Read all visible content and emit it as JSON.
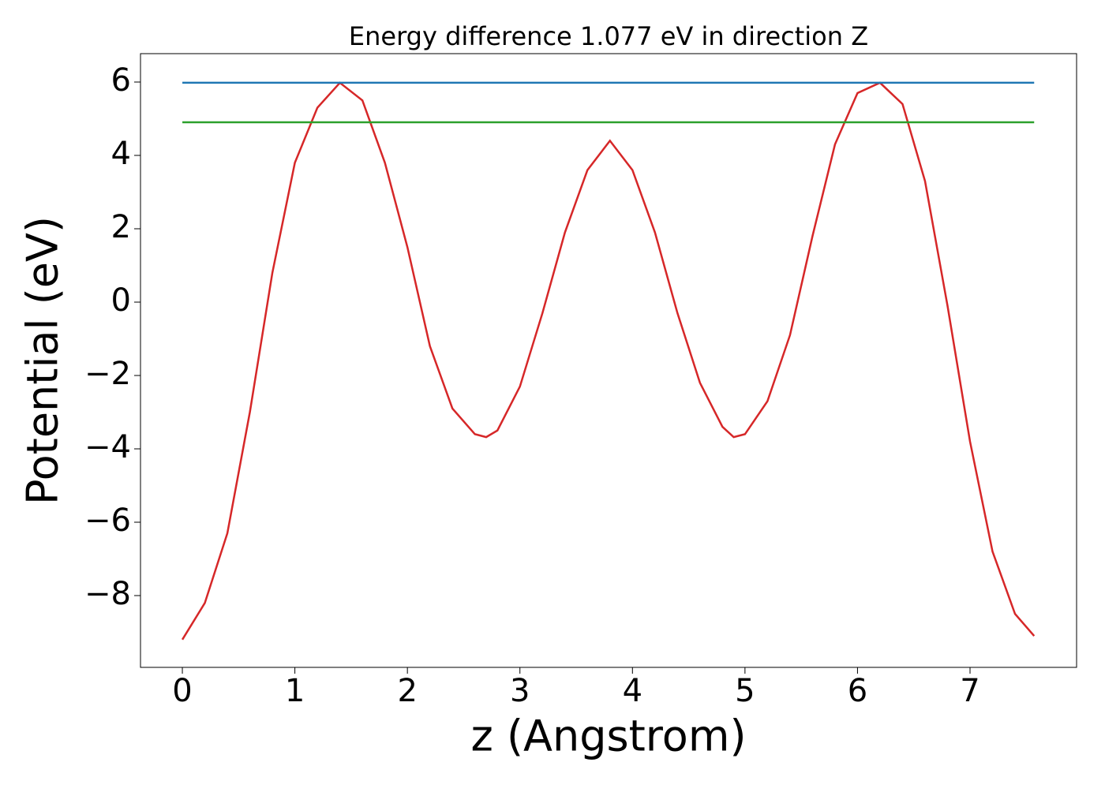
{
  "chart_data": {
    "type": "line",
    "title": "Energy difference 1.077 eV in direction Z",
    "xlabel": "z (Angstrom)",
    "ylabel": "Potential (eV)",
    "xlim": [
      -0.372,
      7.947
    ],
    "ylim": [
      -9.957,
      6.774
    ],
    "xticks": [
      0,
      1,
      2,
      3,
      4,
      5,
      6,
      7
    ],
    "yticks": [
      {
        "value": -8,
        "label": "−8"
      },
      {
        "value": -6,
        "label": "−6"
      },
      {
        "value": -4,
        "label": "−4"
      },
      {
        "value": -2,
        "label": "−2"
      },
      0,
      2,
      4,
      6
    ],
    "grid": false,
    "series": [
      {
        "color": "#d62728",
        "x": [
          0,
          0.2,
          0.4,
          0.6,
          0.8,
          1.0,
          1.2,
          1.4,
          1.6,
          1.8,
          2.0,
          2.2,
          2.4,
          2.6,
          2.7,
          2.8,
          3.0,
          3.2,
          3.4,
          3.6,
          3.8,
          4.0,
          4.2,
          4.4,
          4.6,
          4.8,
          4.9,
          5.0,
          5.2,
          5.4,
          5.6,
          5.8,
          6.0,
          6.2,
          6.4,
          6.6,
          6.8,
          7.0,
          7.2,
          7.4,
          7.57
        ],
        "values": [
          -9.2,
          -8.2,
          -6.3,
          -3.0,
          0.8,
          3.8,
          5.3,
          5.98,
          5.5,
          3.8,
          1.5,
          -1.2,
          -2.9,
          -3.6,
          -3.68,
          -3.5,
          -2.3,
          -0.3,
          1.9,
          3.6,
          4.4,
          3.6,
          1.9,
          -0.3,
          -2.2,
          -3.4,
          -3.68,
          -3.6,
          -2.7,
          -0.9,
          1.8,
          4.3,
          5.7,
          5.98,
          5.4,
          3.3,
          -0.1,
          -3.8,
          -6.8,
          -8.5,
          -9.1
        ]
      },
      {
        "color": "#1f77b4",
        "x": [
          0,
          7.57
        ],
        "values": [
          5.98,
          5.98
        ]
      },
      {
        "color": "#2ca02c",
        "x": [
          0,
          7.57
        ],
        "values": [
          4.903,
          4.903
        ]
      }
    ]
  }
}
